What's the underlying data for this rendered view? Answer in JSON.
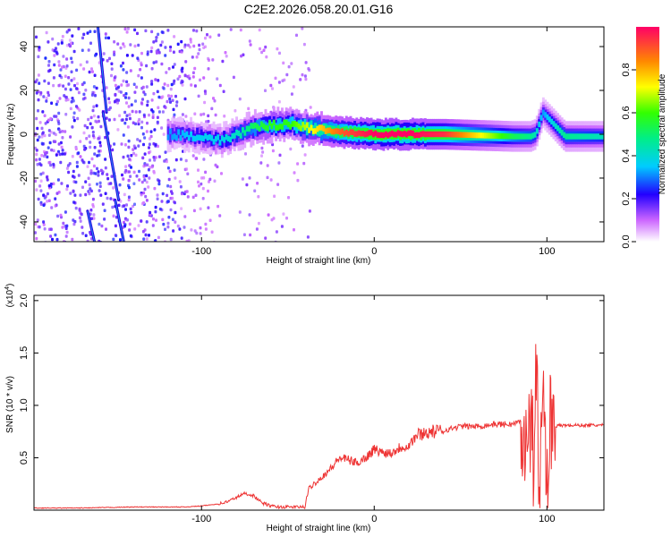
{
  "chart_data": [
    {
      "type": "heatmap",
      "title": "C2E2.2026.058.20.01.G16",
      "xlabel": "Height of straight line (km)",
      "ylabel": "Frequency (Hz)",
      "xlim": [
        -197,
        133
      ],
      "ylim": [
        -49,
        49
      ],
      "x_ticks": [
        -100,
        0,
        100
      ],
      "x_tick_labels": [
        "-100",
        "0",
        "100"
      ],
      "y_ticks": [
        -40,
        -20,
        0,
        20,
        40
      ],
      "y_tick_labels": [
        "-40",
        "-20",
        "0",
        "20",
        "40"
      ],
      "colorbar": {
        "label": "Normalized spectral amplitude",
        "range": [
          0,
          1
        ],
        "ticks": [
          0,
          0.2,
          0.4,
          0.6,
          0.8
        ],
        "tick_labels": [
          "0.0",
          "0.2",
          "0.4",
          "0.6",
          "0.8"
        ]
      },
      "ridge": {
        "x": [
          -120,
          -100,
          -90,
          -80,
          -70,
          -60,
          -50,
          -40,
          -30,
          -20,
          -10,
          0,
          20,
          40,
          60,
          80,
          90,
          93,
          97,
          110,
          133
        ],
        "center_freq": [
          0,
          -1,
          -3,
          0,
          3,
          4,
          5,
          3,
          2,
          1,
          0.5,
          0,
          0,
          0,
          -0.5,
          -1,
          -1,
          0,
          10,
          -1,
          -1
        ],
        "amplitude": [
          0.3,
          0.35,
          0.35,
          0.4,
          0.5,
          0.55,
          0.55,
          0.65,
          0.75,
          0.85,
          0.9,
          0.95,
          0.95,
          0.9,
          0.7,
          0.5,
          0.45,
          0.4,
          0.3,
          0.45,
          0.4
        ]
      },
      "streaks": [
        {
          "x": [
            -160,
            -155
          ],
          "y": [
            49,
            10
          ]
        },
        {
          "x": [
            -157,
            -148
          ],
          "y": [
            10,
            -30
          ]
        },
        {
          "x": [
            -150,
            -145
          ],
          "y": [
            -30,
            -49
          ]
        },
        {
          "x": [
            -166,
            -162
          ],
          "y": [
            -35,
            -49
          ]
        }
      ]
    },
    {
      "type": "line",
      "xlabel": "Height of straight line (km)",
      "ylabel": "SNR (10 * v/v)",
      "y_multiplier_label": "(x10",
      "y_multiplier_exp": "4",
      "y_multiplier_close": ")",
      "xlim": [
        -197,
        133
      ],
      "ylim": [
        0,
        2.05
      ],
      "x_ticks": [
        -100,
        0,
        100
      ],
      "x_tick_labels": [
        "-100",
        "0",
        "100"
      ],
      "y_ticks": [
        0.5,
        1.0,
        1.5,
        2.0
      ],
      "y_tick_labels": [
        "0.5",
        "1.0",
        "1.5",
        "2.0"
      ],
      "color": "#ee3333",
      "series": [
        {
          "name": "SNR",
          "x": [
            -197,
            -170,
            -140,
            -110,
            -100,
            -90,
            -85,
            -80,
            -75,
            -70,
            -65,
            -60,
            -55,
            -50,
            -45,
            -40,
            -38,
            -35,
            -30,
            -25,
            -20,
            -15,
            -10,
            -5,
            0,
            5,
            10,
            15,
            20,
            25,
            30,
            40,
            50,
            60,
            70,
            80,
            85,
            88,
            90,
            92,
            94,
            96,
            98,
            100,
            102,
            104,
            110,
            120,
            133
          ],
          "y": [
            0.02,
            0.02,
            0.03,
            0.03,
            0.04,
            0.06,
            0.08,
            0.12,
            0.16,
            0.14,
            0.07,
            0.04,
            0.03,
            0.03,
            0.03,
            0.03,
            0.2,
            0.25,
            0.32,
            0.4,
            0.5,
            0.48,
            0.45,
            0.5,
            0.58,
            0.55,
            0.55,
            0.6,
            0.62,
            0.72,
            0.74,
            0.76,
            0.8,
            0.8,
            0.82,
            0.82,
            0.85,
            0.8,
            0.9,
            0.5,
            1.25,
            0.1,
            1.5,
            0.05,
            0.9,
            0.8,
            0.81,
            0.81,
            0.81
          ]
        }
      ]
    }
  ]
}
